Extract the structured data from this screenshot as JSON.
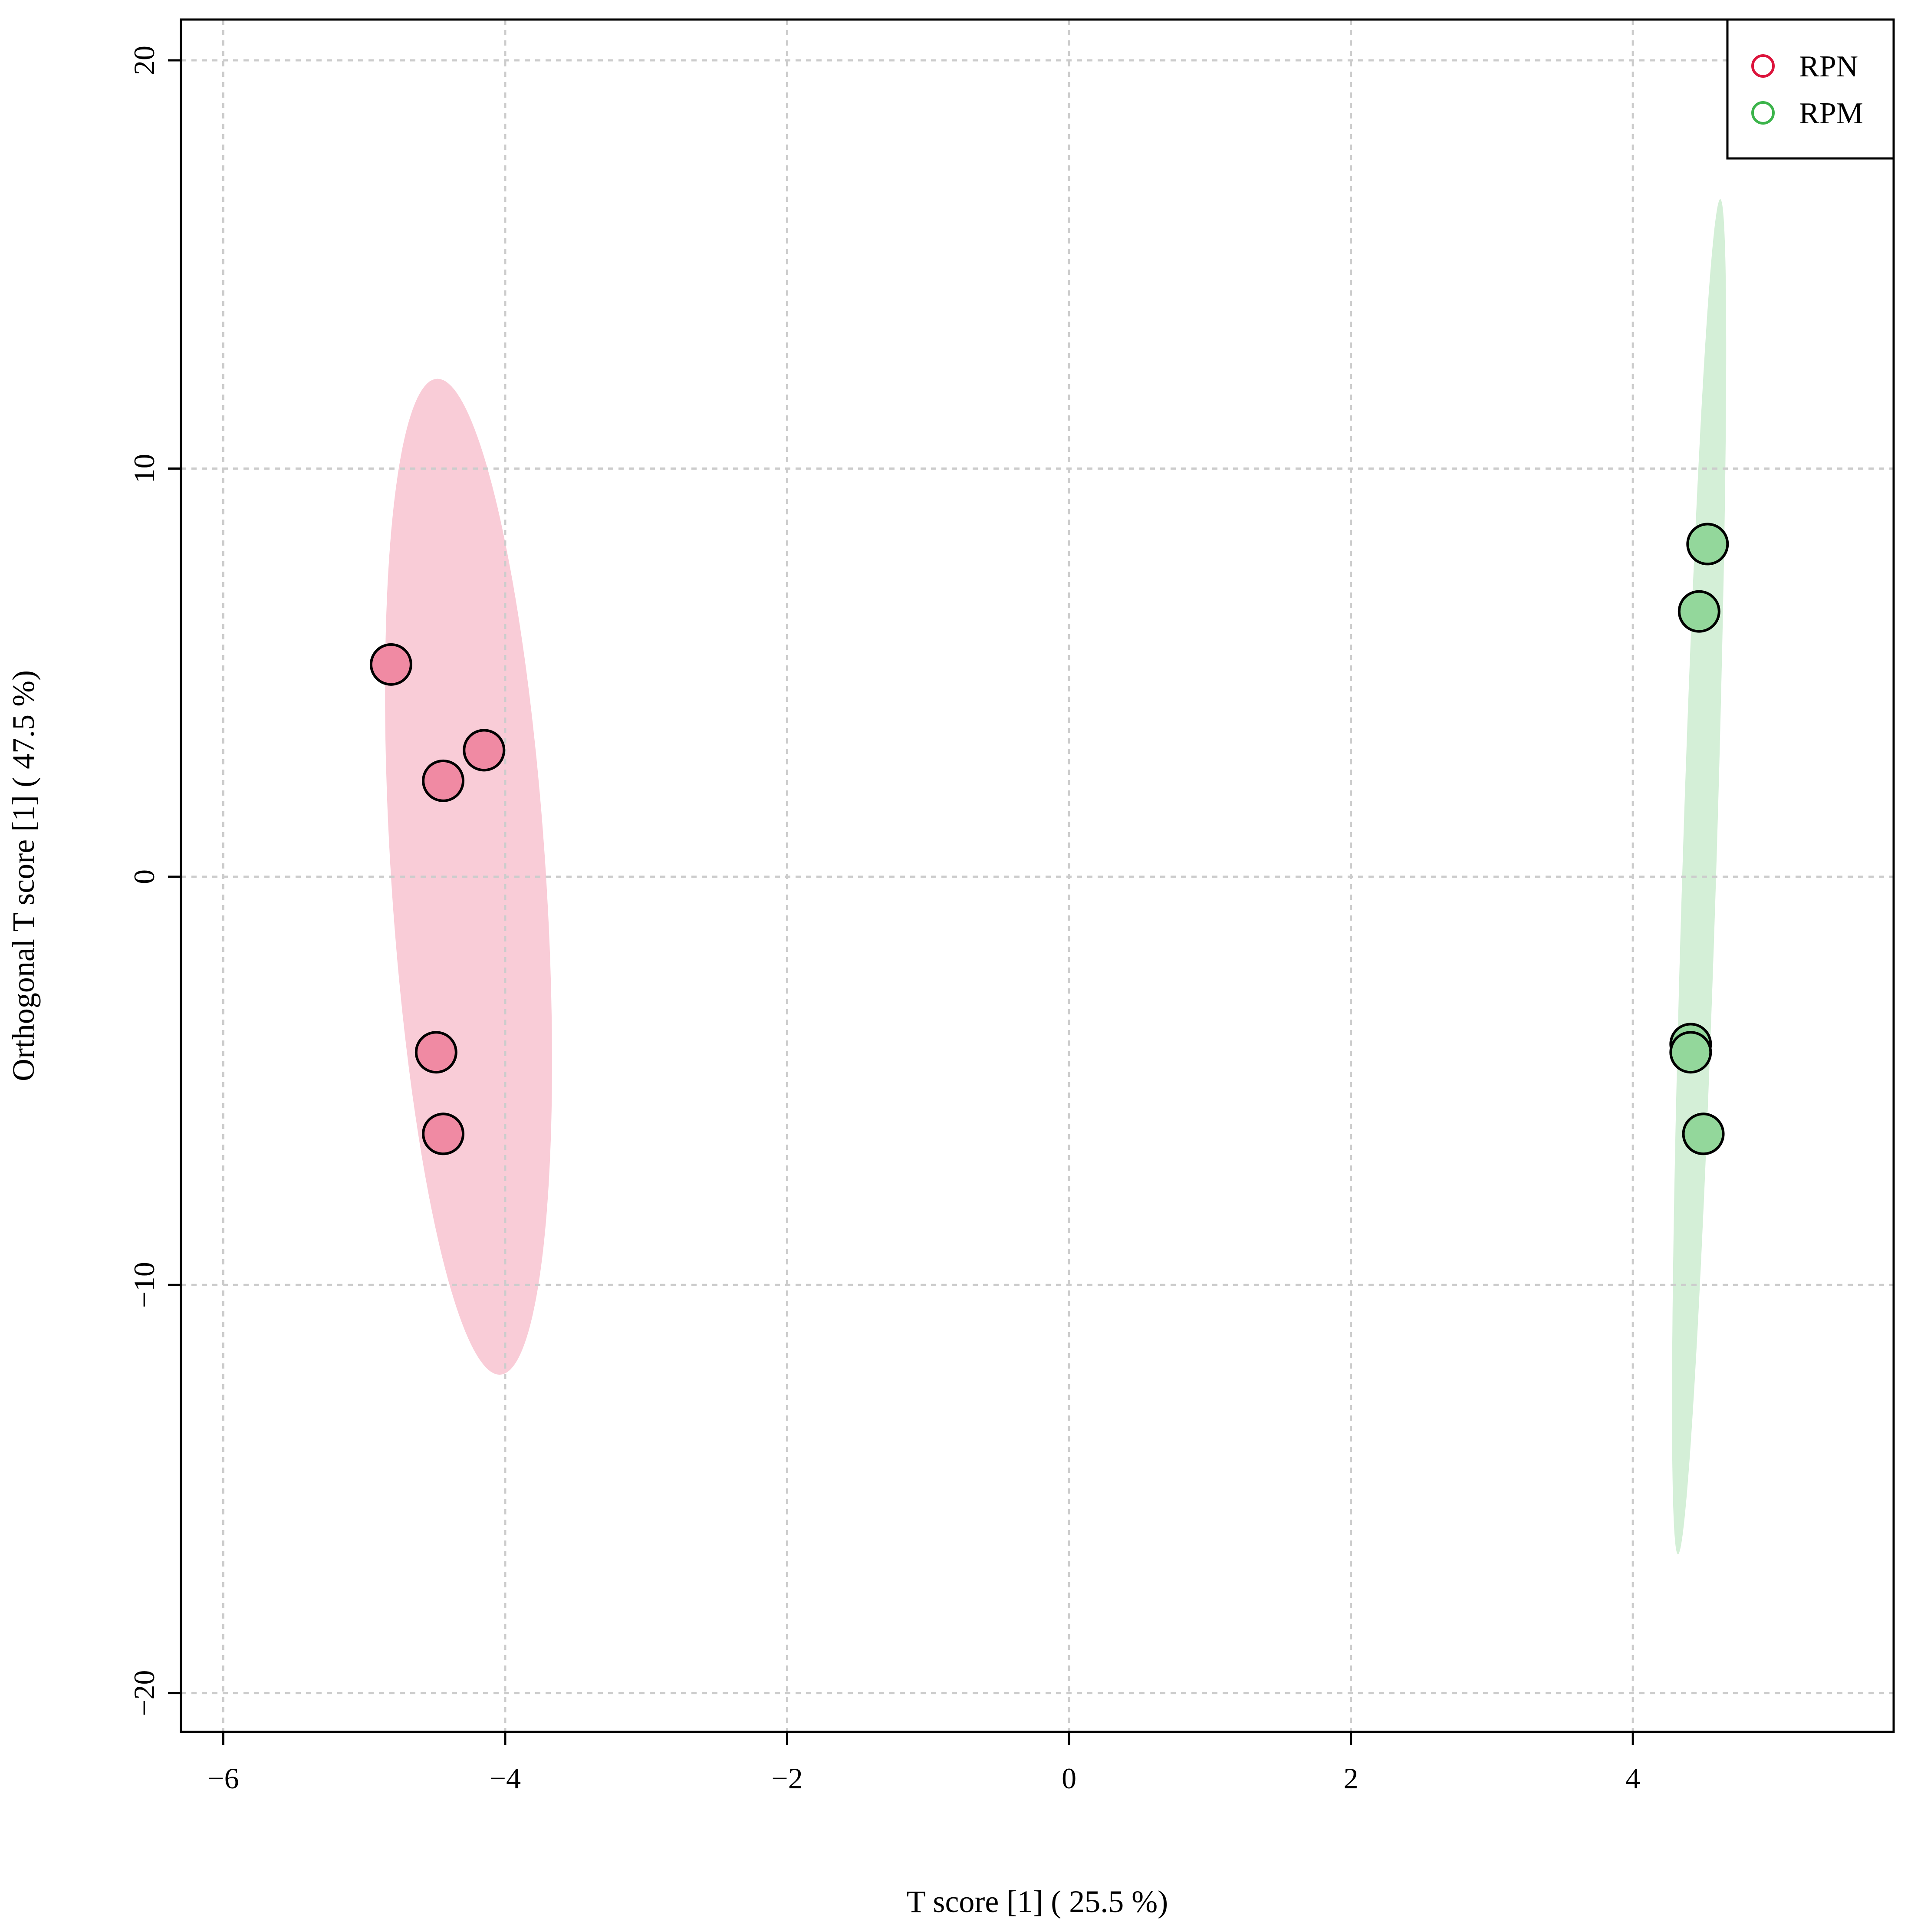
{
  "chart_data": {
    "type": "scatter",
    "title": "",
    "xlabel": "T score [1] ( 25.5 %)",
    "ylabel": "Orthogonal T score [1] ( 47.5 %)",
    "xlim": [
      -6.3,
      5.85
    ],
    "ylim": [
      -20.95,
      21.0
    ],
    "x_ticks": [
      -6,
      -4,
      -2,
      0,
      2,
      4
    ],
    "y_ticks": [
      -20,
      -10,
      0,
      10,
      20
    ],
    "x_tick_labels": [
      "−6",
      "−4",
      "−2",
      "0",
      "2",
      "4"
    ],
    "y_tick_labels": [
      "−20",
      "−10",
      "0",
      "10",
      "20"
    ],
    "grid": true,
    "legend_position": "top-right",
    "series": [
      {
        "name": "RPN",
        "marker_color": "#dc143c",
        "fill": "#f08aa3",
        "ellipse_fill": "#f9ccd7",
        "ellipse": {
          "cx": -4.26,
          "cy": 0.0,
          "rx": 0.55,
          "ry": 12.2,
          "tilt_dx": -0.22
        },
        "points": [
          {
            "x": -4.81,
            "y": 5.2
          },
          {
            "x": -4.15,
            "y": 3.1
          },
          {
            "x": -4.44,
            "y": 2.35
          },
          {
            "x": -4.49,
            "y": -4.3
          },
          {
            "x": -4.44,
            "y": -6.3
          }
        ]
      },
      {
        "name": "RPM",
        "marker_color": "#3cb44b",
        "fill": "#93d79b",
        "ellipse_fill": "#d4efd7",
        "ellipse": {
          "cx": 4.47,
          "cy": 0.0,
          "rx": 0.12,
          "ry": 16.6,
          "tilt_dx": 0.15
        },
        "points": [
          {
            "x": 4.53,
            "y": 8.15
          },
          {
            "x": 4.47,
            "y": 6.5
          },
          {
            "x": 4.41,
            "y": -4.1
          },
          {
            "x": 4.41,
            "y": -4.3
          },
          {
            "x": 4.5,
            "y": -6.3
          }
        ]
      }
    ]
  }
}
